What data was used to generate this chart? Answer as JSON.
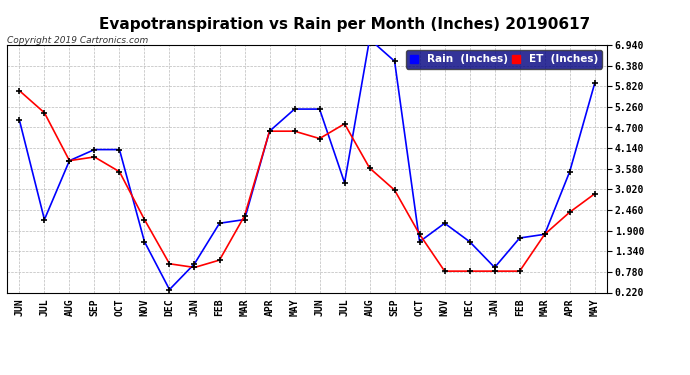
{
  "title": "Evapotranspiration vs Rain per Month (Inches) 20190617",
  "copyright": "Copyright 2019 Cartronics.com",
  "x_labels": [
    "JUN",
    "JUL",
    "AUG",
    "SEP",
    "OCT",
    "NOV",
    "DEC",
    "JAN",
    "FEB",
    "MAR",
    "APR",
    "MAY",
    "JUN",
    "JUL",
    "AUG",
    "SEP",
    "OCT",
    "NOV",
    "DEC",
    "JAN",
    "FEB",
    "MAR",
    "APR",
    "MAY"
  ],
  "rain_inches": [
    4.9,
    2.2,
    3.8,
    4.1,
    4.1,
    1.6,
    0.3,
    1.0,
    2.1,
    2.2,
    4.6,
    5.2,
    5.2,
    3.2,
    7.1,
    6.5,
    1.6,
    2.1,
    1.6,
    0.9,
    1.7,
    1.8,
    3.5,
    5.9
  ],
  "et_inches": [
    5.7,
    5.1,
    3.8,
    3.9,
    3.5,
    2.2,
    1.0,
    0.9,
    1.1,
    2.3,
    4.6,
    4.6,
    4.4,
    4.8,
    3.6,
    3.0,
    1.8,
    0.8,
    0.8,
    0.8,
    0.8,
    1.8,
    2.4,
    2.9
  ],
  "ylim": [
    0.22,
    6.94
  ],
  "yticks": [
    0.22,
    0.78,
    1.34,
    1.9,
    2.46,
    3.02,
    3.58,
    4.14,
    4.7,
    5.26,
    5.82,
    6.38,
    6.94
  ],
  "rain_color": "#0000FF",
  "et_color": "#FF0000",
  "background_color": "#FFFFFF",
  "plot_bg_color": "#FFFFFF",
  "grid_color": "#BBBBBB",
  "title_fontsize": 11,
  "legend_rain_label": "Rain  (Inches)",
  "legend_et_label": "ET  (Inches)",
  "marker": "+",
  "marker_color": "#000000",
  "marker_size": 5,
  "marker_linewidth": 1.2,
  "line_width": 1.2
}
